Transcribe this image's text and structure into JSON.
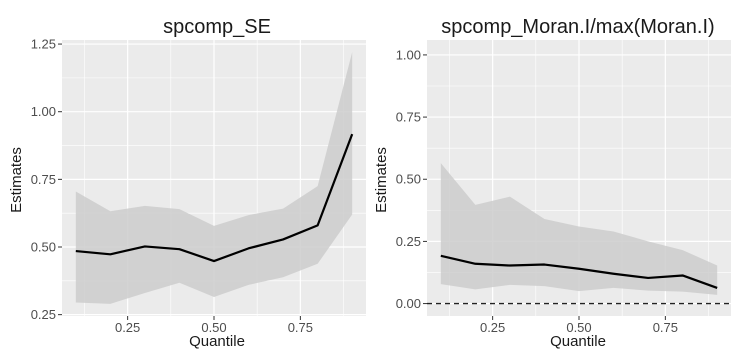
{
  "chart_data": [
    {
      "type": "line",
      "title": "spcomp_SE",
      "xlabel": "Quantile",
      "ylabel": "Estimates",
      "xlim": [
        0.06,
        0.94
      ],
      "ylim": [
        0.245,
        1.265
      ],
      "xticks": [
        0.25,
        0.5,
        0.75
      ],
      "xtick_labels": [
        "0.25",
        "0.50",
        "0.75"
      ],
      "yticks": [
        0.25,
        0.5,
        0.75,
        1.0,
        1.25
      ],
      "ytick_labels": [
        "0.25",
        "0.50",
        "0.75",
        "1.00",
        "1.25"
      ],
      "grid": true,
      "x": [
        0.1,
        0.2,
        0.3,
        0.4,
        0.5,
        0.6,
        0.7,
        0.8,
        0.9
      ],
      "series": [
        {
          "values": [
            0.485,
            0.473,
            0.502,
            0.492,
            0.448,
            0.495,
            0.528,
            0.58,
            0.917
          ]
        }
      ],
      "band_upper": [
        0.705,
        0.632,
        0.652,
        0.64,
        0.578,
        0.618,
        0.642,
        0.725,
        1.22
      ],
      "band_lower": [
        0.295,
        0.29,
        0.33,
        0.368,
        0.315,
        0.36,
        0.388,
        0.438,
        0.62
      ],
      "colors": {
        "panel": "#ebebeb",
        "grid": "#ffffff",
        "band": "#cccccc",
        "line": "#000000"
      }
    },
    {
      "type": "line",
      "title": "spcomp_Moran.I/max(Moran.I)",
      "xlabel": "Quantile",
      "ylabel": "Estimates",
      "xlim": [
        0.06,
        0.94
      ],
      "ylim": [
        -0.05,
        1.06
      ],
      "xticks": [
        0.25,
        0.5,
        0.75
      ],
      "xtick_labels": [
        "0.25",
        "0.50",
        "0.75"
      ],
      "yticks": [
        0.0,
        0.25,
        0.5,
        0.75,
        1.0
      ],
      "ytick_labels": [
        "0.00",
        "0.25",
        "0.50",
        "0.75",
        "1.00"
      ],
      "grid": true,
      "x": [
        0.1,
        0.2,
        0.3,
        0.4,
        0.5,
        0.6,
        0.7,
        0.8,
        0.9
      ],
      "series": [
        {
          "values": [
            0.192,
            0.16,
            0.153,
            0.157,
            0.14,
            0.12,
            0.103,
            0.113,
            0.063
          ]
        }
      ],
      "band_upper": [
        0.565,
        0.397,
        0.43,
        0.34,
        0.31,
        0.29,
        0.25,
        0.215,
        0.153
      ],
      "band_lower": [
        0.078,
        0.057,
        0.075,
        0.07,
        0.05,
        0.063,
        0.052,
        0.048,
        0.035
      ],
      "reference_line": 0.0,
      "colors": {
        "panel": "#ebebeb",
        "grid": "#ffffff",
        "band": "#cccccc",
        "line": "#000000"
      }
    }
  ]
}
